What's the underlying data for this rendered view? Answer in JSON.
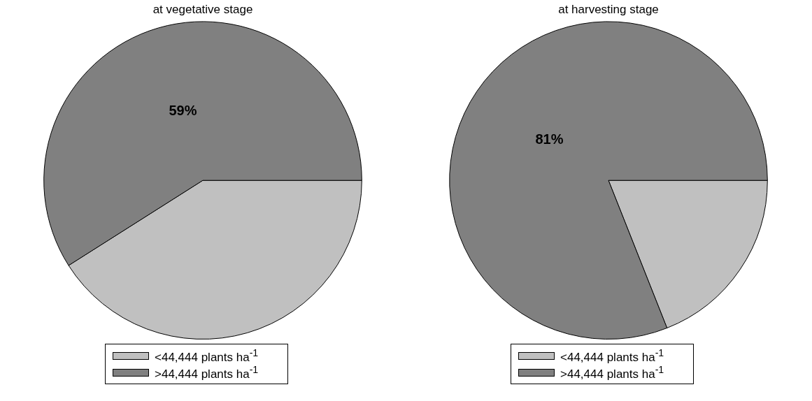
{
  "chart_data": [
    {
      "type": "pie",
      "title": "at vegetative stage",
      "categories": [
        "<44,444 plants ha$^{-1}$",
        ">44,444 plants ha$^{-1}$"
      ],
      "values": [
        41,
        59
      ],
      "colors": [
        "#c0c0c0",
        "#808080"
      ],
      "value_labels": [
        null,
        "59%"
      ],
      "legend": "bottom"
    },
    {
      "type": "pie",
      "title": "at harvesting stage",
      "categories": [
        "<44,444 plants ha$^{-1}$",
        ">44,444 plants ha$^{-1}$"
      ],
      "values": [
        19,
        81
      ],
      "colors": [
        "#c0c0c0",
        "#808080"
      ],
      "value_labels": [
        null,
        "81%"
      ],
      "legend": "bottom"
    }
  ]
}
